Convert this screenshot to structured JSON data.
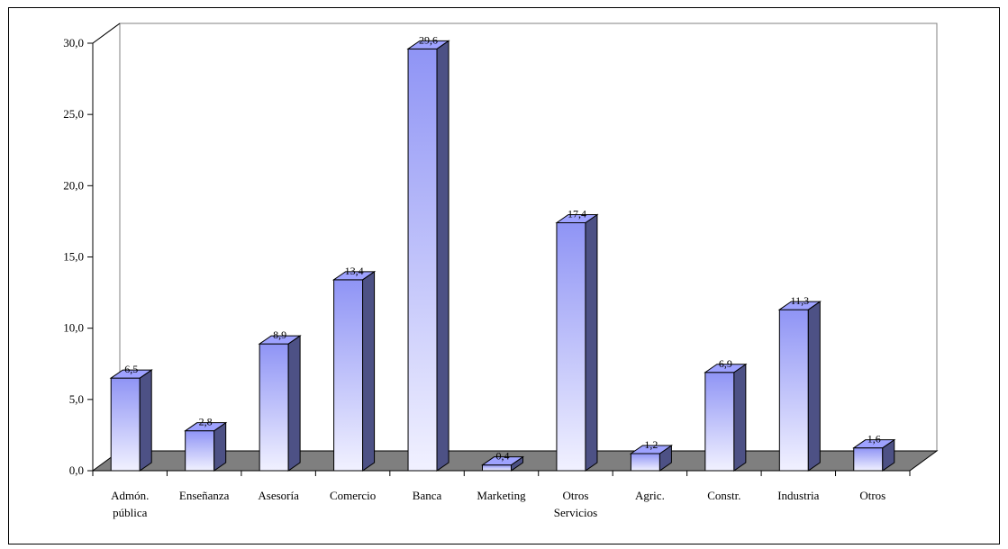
{
  "chart_data": {
    "type": "bar",
    "title": "",
    "xlabel": "",
    "ylabel": "",
    "categories": [
      [
        "Admón.",
        "pública"
      ],
      [
        "Enseñanza"
      ],
      [
        "Asesoría"
      ],
      [
        "Comercio"
      ],
      [
        "Banca"
      ],
      [
        "Marketing"
      ],
      [
        "Otros",
        "Servicios"
      ],
      [
        "Agric."
      ],
      [
        "Constr."
      ],
      [
        "Industria"
      ],
      [
        "Otros"
      ]
    ],
    "values": [
      6.5,
      2.8,
      8.9,
      13.4,
      29.6,
      0.4,
      17.4,
      1.2,
      6.9,
      11.3,
      1.6
    ],
    "value_labels": [
      "6,5",
      "2,8",
      "8,9",
      "13,4",
      "29,6",
      "0,4",
      "17,4",
      "1,2",
      "6,9",
      "11,3",
      "1,6"
    ],
    "ylim": [
      0,
      30
    ],
    "yticks": [
      "0,0",
      "5,0",
      "10,0",
      "15,0",
      "20,0",
      "25,0",
      "30,0"
    ],
    "grid": false,
    "legend": "none",
    "colors": {
      "bar_top": "#8f94f5",
      "bar_bottom": "#f1f1ff",
      "bar_side": "#4d5185",
      "bar_cap": "#9ea2ff",
      "floor": "#7f7f7f",
      "wall_line": "#808080"
    }
  }
}
